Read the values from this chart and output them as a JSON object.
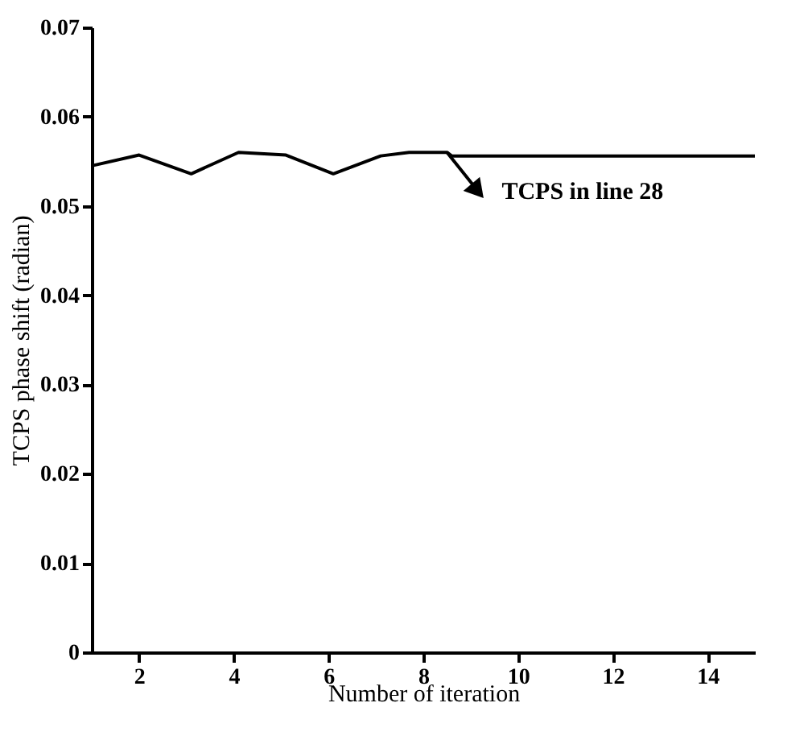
{
  "chart_data": {
    "type": "line",
    "xlabel": "Number of iteration",
    "ylabel": "TCPS phase shift (radian)",
    "x": [
      1,
      2,
      3.1,
      4.1,
      5.1,
      6.1,
      7.1,
      7.7,
      8.5,
      8.6,
      15
    ],
    "series": [
      {
        "color": "#000000",
        "values": [
          0.0545,
          0.0557,
          0.0536,
          0.056,
          0.0557,
          0.0536,
          0.0556,
          0.056,
          0.056,
          0.0556,
          0.0556
        ]
      }
    ],
    "xlim": [
      1,
      15
    ],
    "xticks": [
      2,
      4,
      6,
      8,
      10,
      12,
      14
    ],
    "ylim": [
      0,
      0.07
    ],
    "yticks": [
      {
        "value": 0,
        "label": "0"
      },
      0.01,
      0.02,
      0.03,
      0.04,
      0.05,
      0.06,
      0.07
    ],
    "annotations": [
      {
        "text": "TCPS in line 28",
        "x": 8.5,
        "y": 0.056
      }
    ],
    "grid": false,
    "marker": "none",
    "line_style": "solid"
  }
}
